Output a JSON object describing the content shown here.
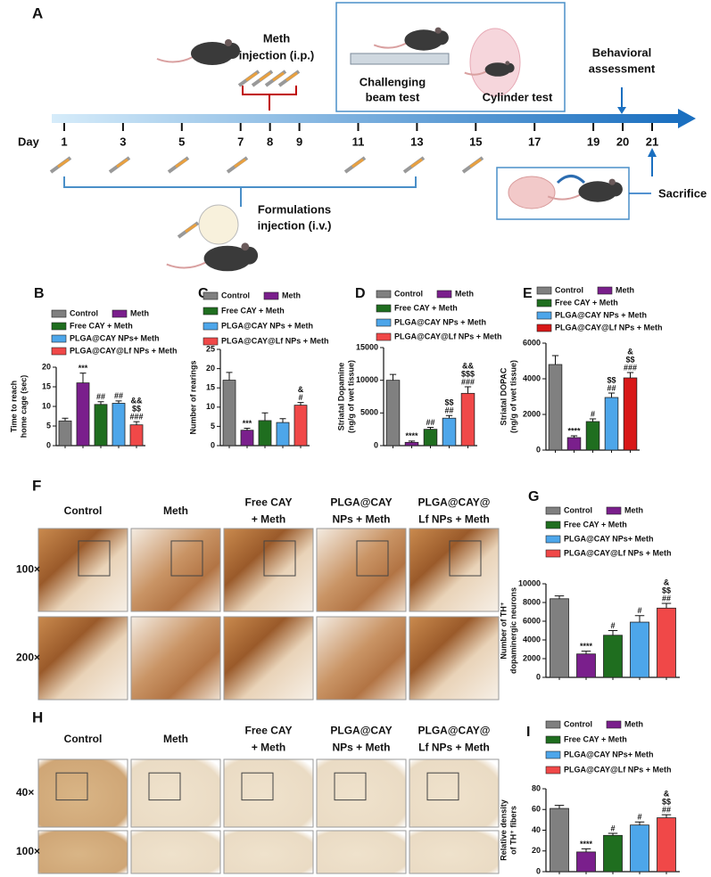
{
  "timeline": {
    "label": "A",
    "day_label": "Day",
    "days": [
      1,
      3,
      5,
      7,
      8,
      9,
      11,
      13,
      15,
      17,
      19,
      20,
      21
    ],
    "highlight_day": 8,
    "highlight_color": "#c00000",
    "meth": "Meth",
    "meth_route": "injection (i.p.)",
    "test_1": [
      "Challenging",
      "beam test"
    ],
    "test_2": "Cylinder test",
    "behavioral": [
      "Behavioral",
      "assessment"
    ],
    "formulations": [
      "Formulations",
      "injection (i.v.)"
    ],
    "sacrifice": "Sacrifice"
  },
  "micrographs": [
    {
      "label": "F",
      "columns": [
        [
          "Control"
        ],
        [
          "Meth"
        ],
        [
          "Free CAY",
          "+ Meth"
        ],
        [
          "PLGA@CAY",
          "NPs + Meth"
        ],
        [
          "PLGA@CAY@",
          "Lf NPs + Meth"
        ]
      ],
      "rows": [
        "100×",
        "200×"
      ]
    },
    {
      "label": "H",
      "columns": [
        [
          "Control"
        ],
        [
          "Meth"
        ],
        [
          "Free CAY",
          "+ Meth"
        ],
        [
          "PLGA@CAY",
          "NPs + Meth"
        ],
        [
          "PLGA@CAY@",
          "Lf NPs + Meth"
        ]
      ],
      "rows": [
        "40×",
        "100×"
      ]
    }
  ],
  "chart_data": [
    {
      "type": "bar",
      "label": "B",
      "ylabel": [
        "Time to reach",
        "home cage (sec)"
      ],
      "categories": [
        "Control",
        "Meth",
        "Free CAY + Meth",
        "PLGA@CAY NPs+ Meth",
        "PLGA@CAY@Lf NPs + Meth"
      ],
      "colors": [
        "#808080",
        "#7a1f8c",
        "#1f6e1f",
        "#4da6ea",
        "#f04848"
      ],
      "values": [
        6.3,
        16,
        10.5,
        10.8,
        5.3
      ],
      "errors": [
        0.7,
        2.5,
        0.7,
        0.6,
        0.8
      ],
      "annotations": [
        null,
        [
          "***"
        ],
        [
          "##"
        ],
        [
          "##"
        ],
        [
          "&&",
          "$$",
          "###"
        ]
      ],
      "ylim": [
        0,
        20
      ],
      "yticks": [
        0,
        5,
        10,
        15,
        20
      ]
    },
    {
      "type": "bar",
      "label": "C",
      "ylabel": [
        "Number of rearings"
      ],
      "categories": [
        "Control",
        "Meth",
        "Free CAY + Meth",
        "PLGA@CAY NPs + Meth",
        "PLGA@CAY@Lf NPs + Meth"
      ],
      "colors": [
        "#808080",
        "#7a1f8c",
        "#1f6e1f",
        "#4da6ea",
        "#f04848"
      ],
      "values": [
        17,
        4,
        6.5,
        6,
        10.5
      ],
      "errors": [
        2,
        0.5,
        2,
        1,
        0.7
      ],
      "annotations": [
        null,
        [
          "***"
        ],
        null,
        null,
        [
          "&",
          "#"
        ]
      ],
      "ylim": [
        0,
        25
      ],
      "yticks": [
        0,
        5,
        10,
        15,
        20,
        25
      ]
    },
    {
      "type": "bar",
      "label": "D",
      "ylabel": [
        "Striatal Dopamine",
        "(ng/g of wet tissue)"
      ],
      "categories": [
        "Control",
        "Meth",
        "Free CAY + Meth",
        "PLGA@CAY NPs + Meth",
        "PLGA@CAY@Lf NPs + Meth"
      ],
      "colors": [
        "#808080",
        "#7a1f8c",
        "#1f6e1f",
        "#4da6ea",
        "#f04848"
      ],
      "values": [
        10000,
        500,
        2500,
        4200,
        8000
      ],
      "errors": [
        900,
        200,
        300,
        400,
        1000
      ],
      "annotations": [
        null,
        [
          "****"
        ],
        [
          "##"
        ],
        [
          "$$",
          "##"
        ],
        [
          "&&",
          "$$$",
          "###"
        ]
      ],
      "ylim": [
        0,
        15000
      ],
      "yticks": [
        0,
        5000,
        10000,
        15000
      ]
    },
    {
      "type": "bar",
      "label": "E",
      "ylabel": [
        "Striatal DOPAC",
        "(ng/g of wet tissue)"
      ],
      "categories": [
        "Control",
        "Meth",
        "Free CAY + Meth",
        "PLGA@CAY NPs + Meth",
        "PLGA@CAY@Lf NPs + Meth"
      ],
      "colors": [
        "#808080",
        "#7a1f8c",
        "#1f6e1f",
        "#4da6ea",
        "#d81818"
      ],
      "values": [
        4800,
        700,
        1600,
        2950,
        4050
      ],
      "errors": [
        500,
        100,
        150,
        250,
        300
      ],
      "annotations": [
        null,
        [
          "****"
        ],
        [
          "#"
        ],
        [
          "$$",
          "##"
        ],
        [
          "&",
          "$$",
          "###"
        ]
      ],
      "ylim": [
        0,
        6000
      ],
      "yticks": [
        0,
        2000,
        4000,
        6000
      ]
    },
    {
      "type": "bar",
      "label": "G",
      "ylabel": [
        "Number of TH⁺",
        "dopaminergic neurons"
      ],
      "categories": [
        "Control",
        "Meth",
        "Free CAY + Meth",
        "PLGA@CAY NPs+ Meth",
        "PLGA@CAY@Lf NPs + Meth"
      ],
      "colors": [
        "#808080",
        "#7a1f8c",
        "#1f6e1f",
        "#4da6ea",
        "#f04848"
      ],
      "values": [
        8400,
        2500,
        4500,
        5900,
        7400
      ],
      "errors": [
        300,
        300,
        500,
        700,
        500
      ],
      "annotations": [
        null,
        [
          "****"
        ],
        [
          "#"
        ],
        [
          "#"
        ],
        [
          "&",
          "$$",
          "##"
        ]
      ],
      "ylim": [
        0,
        10000
      ],
      "yticks": [
        0,
        2000,
        4000,
        6000,
        8000,
        10000
      ]
    },
    {
      "type": "bar",
      "label": "I",
      "ylabel": [
        "Relative density",
        "of TH⁺ fibers"
      ],
      "categories": [
        "Control",
        "Meth",
        "Free CAY + Meth",
        "PLGA@CAY NPs+ Meth",
        "PLGA@CAY@Lf NPs + Meth"
      ],
      "colors": [
        "#808080",
        "#7a1f8c",
        "#1f6e1f",
        "#4da6ea",
        "#f04848"
      ],
      "values": [
        61,
        19,
        35,
        45,
        52
      ],
      "errors": [
        3,
        3,
        2,
        3,
        3
      ],
      "annotations": [
        null,
        [
          "****"
        ],
        [
          "#"
        ],
        [
          "#"
        ],
        [
          "&",
          "$$",
          "##"
        ]
      ],
      "ylim": [
        0,
        80
      ],
      "yticks": [
        0,
        20,
        40,
        60,
        80
      ]
    }
  ]
}
